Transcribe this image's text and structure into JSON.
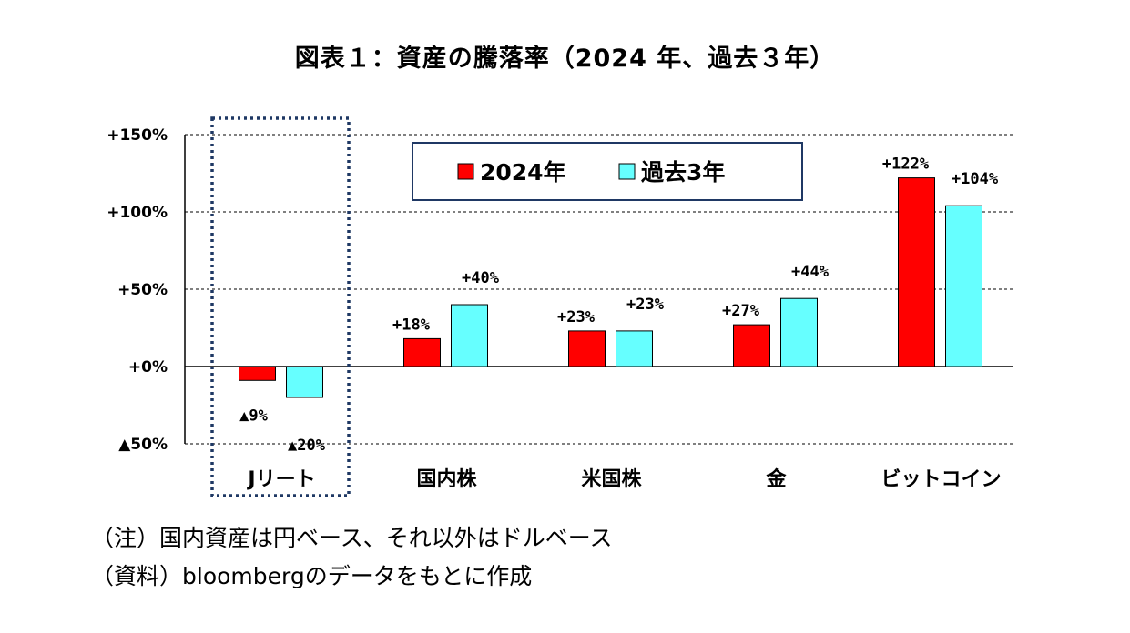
{
  "title": "図表１：資産の騰落率（2024 年、過去３年）",
  "notes": {
    "note1": "（注）国内資産は円ベース、それ以外はドルベース",
    "note2": "（資料）bloombergのデータをもとに作成"
  },
  "colors": {
    "series1": "#ff0000",
    "series2": "#66ffff",
    "legend_border": "#1f3864",
    "highlight_box": "#1f3864"
  },
  "chart_data": {
    "type": "bar",
    "categories": [
      "Jリート",
      "国内株",
      "米国株",
      "金",
      "ビットコイン"
    ],
    "series": [
      {
        "name": "2024年",
        "values": [
          -9,
          18,
          23,
          27,
          122
        ],
        "labels": [
          "▲9%",
          "+18%",
          "+23%",
          "+27%",
          "+122%"
        ]
      },
      {
        "name": "過去3年",
        "values": [
          -20,
          40,
          23,
          44,
          104
        ],
        "labels": [
          "▲20%",
          "+40%",
          "+23%",
          "+44%",
          "+104%"
        ]
      }
    ],
    "ylim": [
      -50,
      150
    ],
    "yticks": [
      -50,
      0,
      50,
      100,
      150
    ],
    "ytick_labels": [
      "▲50%",
      "+0%",
      "+50%",
      "+100%",
      "+150%"
    ],
    "grid": "horizontal dashed",
    "legend": "top-center",
    "highlighted_category": "Jリート"
  }
}
